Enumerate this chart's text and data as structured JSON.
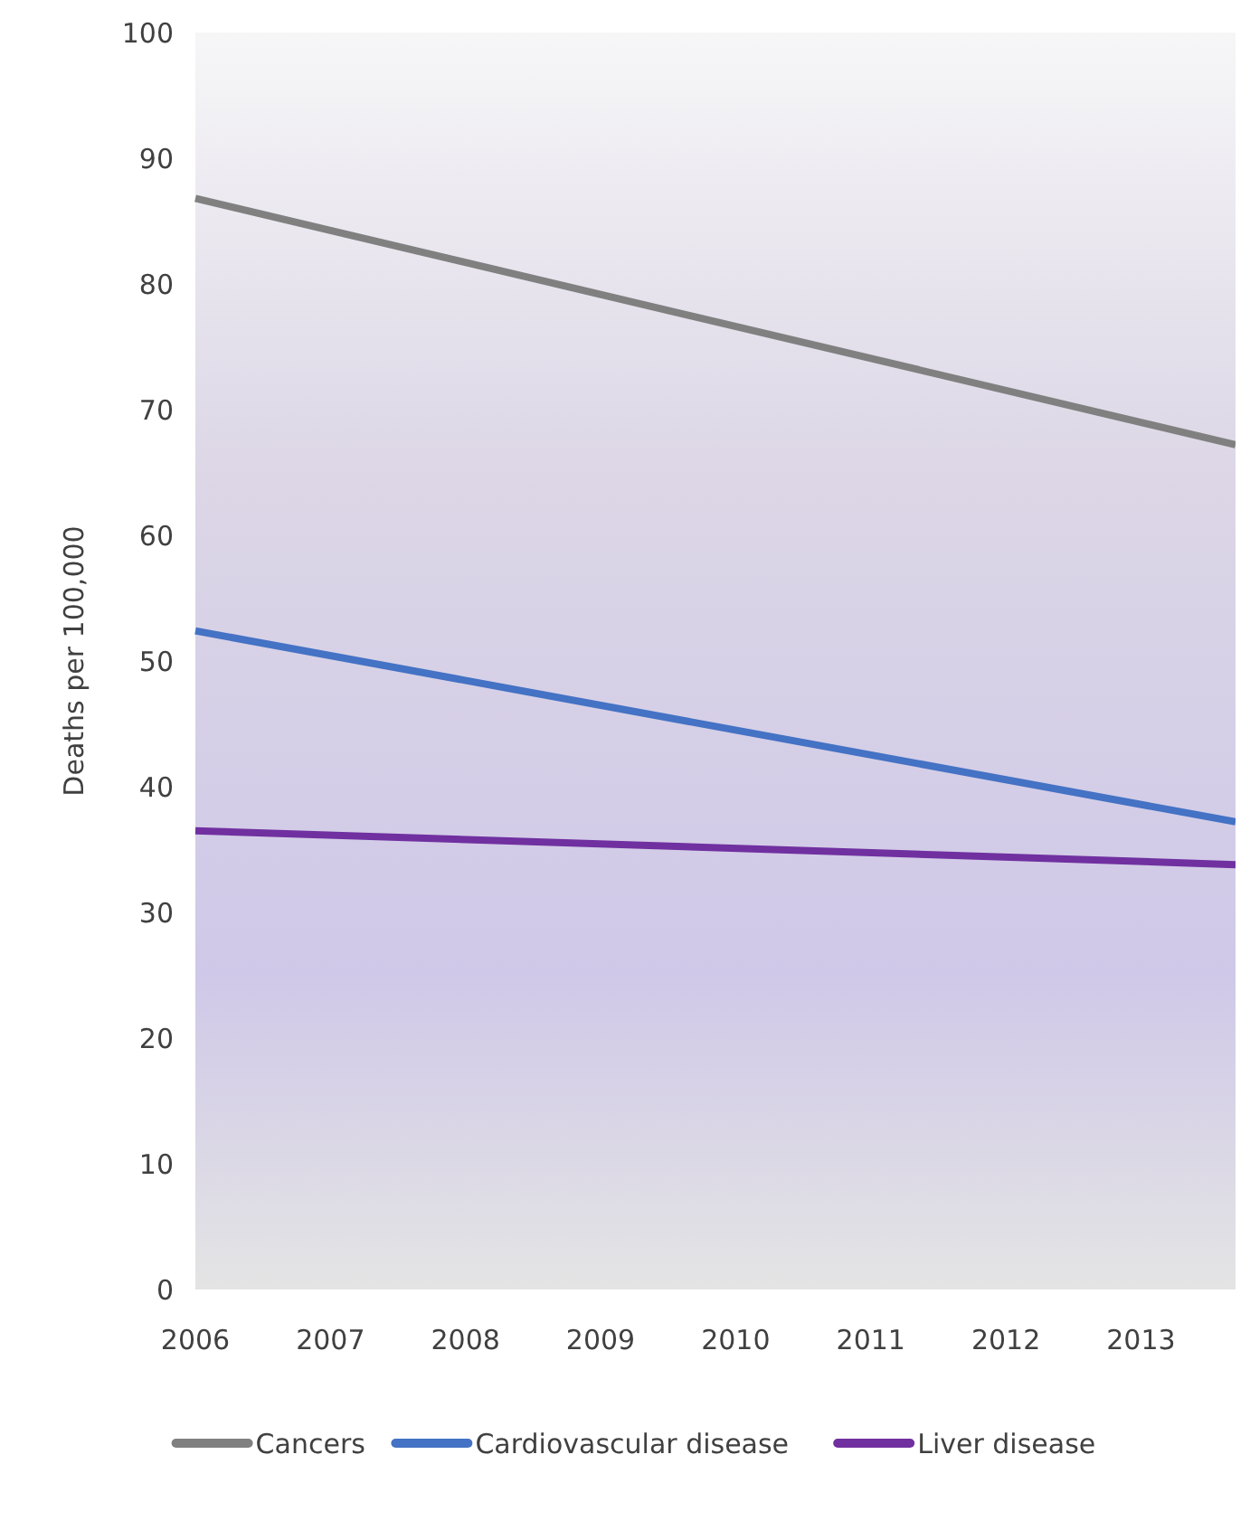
{
  "chart_data": {
    "type": "line",
    "ylabel": "Deaths per 100,000",
    "x": [
      2006,
      2013.7
    ],
    "xlim": [
      2006,
      2013.7
    ],
    "xticks": [
      2006,
      2007,
      2008,
      2009,
      2010,
      2011,
      2012,
      2013
    ],
    "ylim": [
      0,
      100
    ],
    "yticks": [
      0,
      10,
      20,
      30,
      40,
      50,
      60,
      70,
      80,
      90,
      100
    ],
    "grid": false,
    "legend": "bottom",
    "marker": "none",
    "line_style": "solid",
    "series": [
      {
        "name": "Cancers",
        "color": "#808080",
        "values": [
          86.8,
          67.2
        ]
      },
      {
        "name": "Cardiovascular disease",
        "color": "#4472c4",
        "values": [
          52.4,
          37.2
        ]
      },
      {
        "name": "Liver disease",
        "color": "#7030a0",
        "values": [
          36.5,
          33.8
        ]
      }
    ]
  }
}
